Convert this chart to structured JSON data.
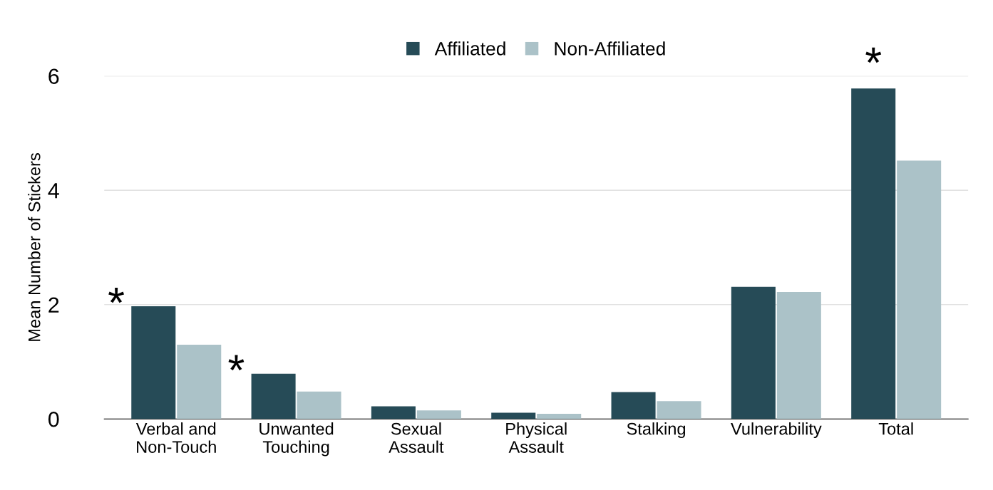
{
  "chart_data": {
    "type": "bar",
    "ylabel": "Mean Number of Stickers",
    "categories": [
      "Verbal and\nNon-Touch",
      "Unwanted\nTouching",
      "Sexual\nAssault",
      "Physical\nAssault",
      "Stalking",
      "Vulnerability",
      "Total"
    ],
    "series": [
      {
        "name": "Affiliated",
        "color": "#264b57",
        "values": [
          1.97,
          0.79,
          0.22,
          0.11,
          0.47,
          2.31,
          5.78
        ]
      },
      {
        "name": "Non-Affiliated",
        "color": "#abc2c8",
        "values": [
          1.3,
          0.48,
          0.15,
          0.09,
          0.31,
          2.22,
          4.52
        ]
      }
    ],
    "ylim": [
      0,
      6
    ],
    "yticks": [
      0,
      2,
      4,
      6
    ],
    "grid": "y",
    "legend": "top",
    "annotations": [
      {
        "text": "*",
        "x": "Verbal and\nNon-Touch",
        "y": 1.97
      },
      {
        "text": "*",
        "x": "Unwanted\nTouching",
        "y": 0.79
      },
      {
        "text": "*",
        "x": "Total",
        "y": 5.78
      }
    ]
  }
}
